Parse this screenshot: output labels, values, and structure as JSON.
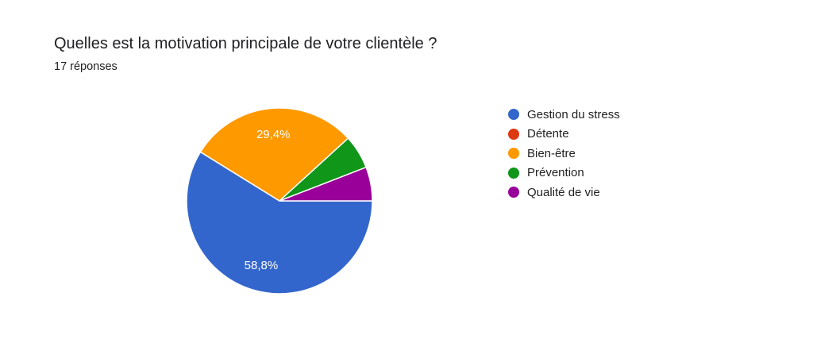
{
  "header": {
    "title": "Quelles est la motivation principale de votre clientèle ?",
    "subtitle": "17 réponses"
  },
  "chart_data": {
    "type": "pie",
    "title": "Quelles est la motivation principale de votre clientèle ?",
    "legend_position": "right",
    "categories": [
      "Gestion du stress",
      "Détente",
      "Bien-être",
      "Prévention",
      "Qualité de vie"
    ],
    "values": [
      10,
      0,
      5,
      1,
      1
    ],
    "percentages": [
      58.8,
      0,
      29.4,
      5.9,
      5.9
    ],
    "colors": [
      "#3366cc",
      "#dc3912",
      "#ff9900",
      "#109618",
      "#990099"
    ],
    "data_labels": [
      "58,8%",
      "",
      "29,4%",
      "",
      ""
    ]
  }
}
